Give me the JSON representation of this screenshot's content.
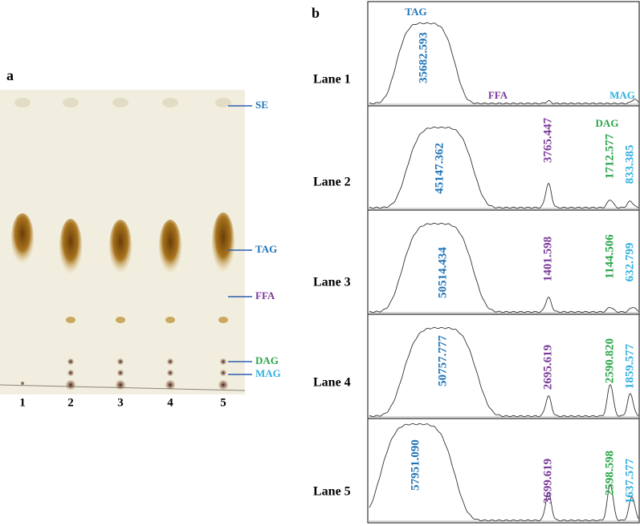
{
  "panel_a": {
    "label": "a",
    "bands": [
      "SE",
      "TAG",
      "FFA",
      "DAG",
      "MAG"
    ],
    "lanes": [
      "1",
      "2",
      "3",
      "4",
      "5"
    ]
  },
  "panel_b": {
    "label": "b",
    "annotations": [
      "TAG",
      "FFA",
      "MAG",
      "DAG"
    ],
    "lanes": [
      {
        "name": "Lane 1",
        "peaks": [
          "35682.593"
        ]
      },
      {
        "name": "Lane 2",
        "peaks": [
          "45147.362",
          "3765.447",
          "1712.577",
          "833.385"
        ]
      },
      {
        "name": "Lane 3",
        "peaks": [
          "50514.434",
          "1401.598",
          "1144.506",
          "632.799"
        ]
      },
      {
        "name": "Lane 4",
        "peaks": [
          "50757.777",
          "2695.619",
          "2590.820",
          "1859.577"
        ]
      },
      {
        "name": "Lane 5",
        "peaks": [
          "57951.090",
          "3699.619",
          "2598.598",
          "1637.577"
        ]
      }
    ]
  }
}
